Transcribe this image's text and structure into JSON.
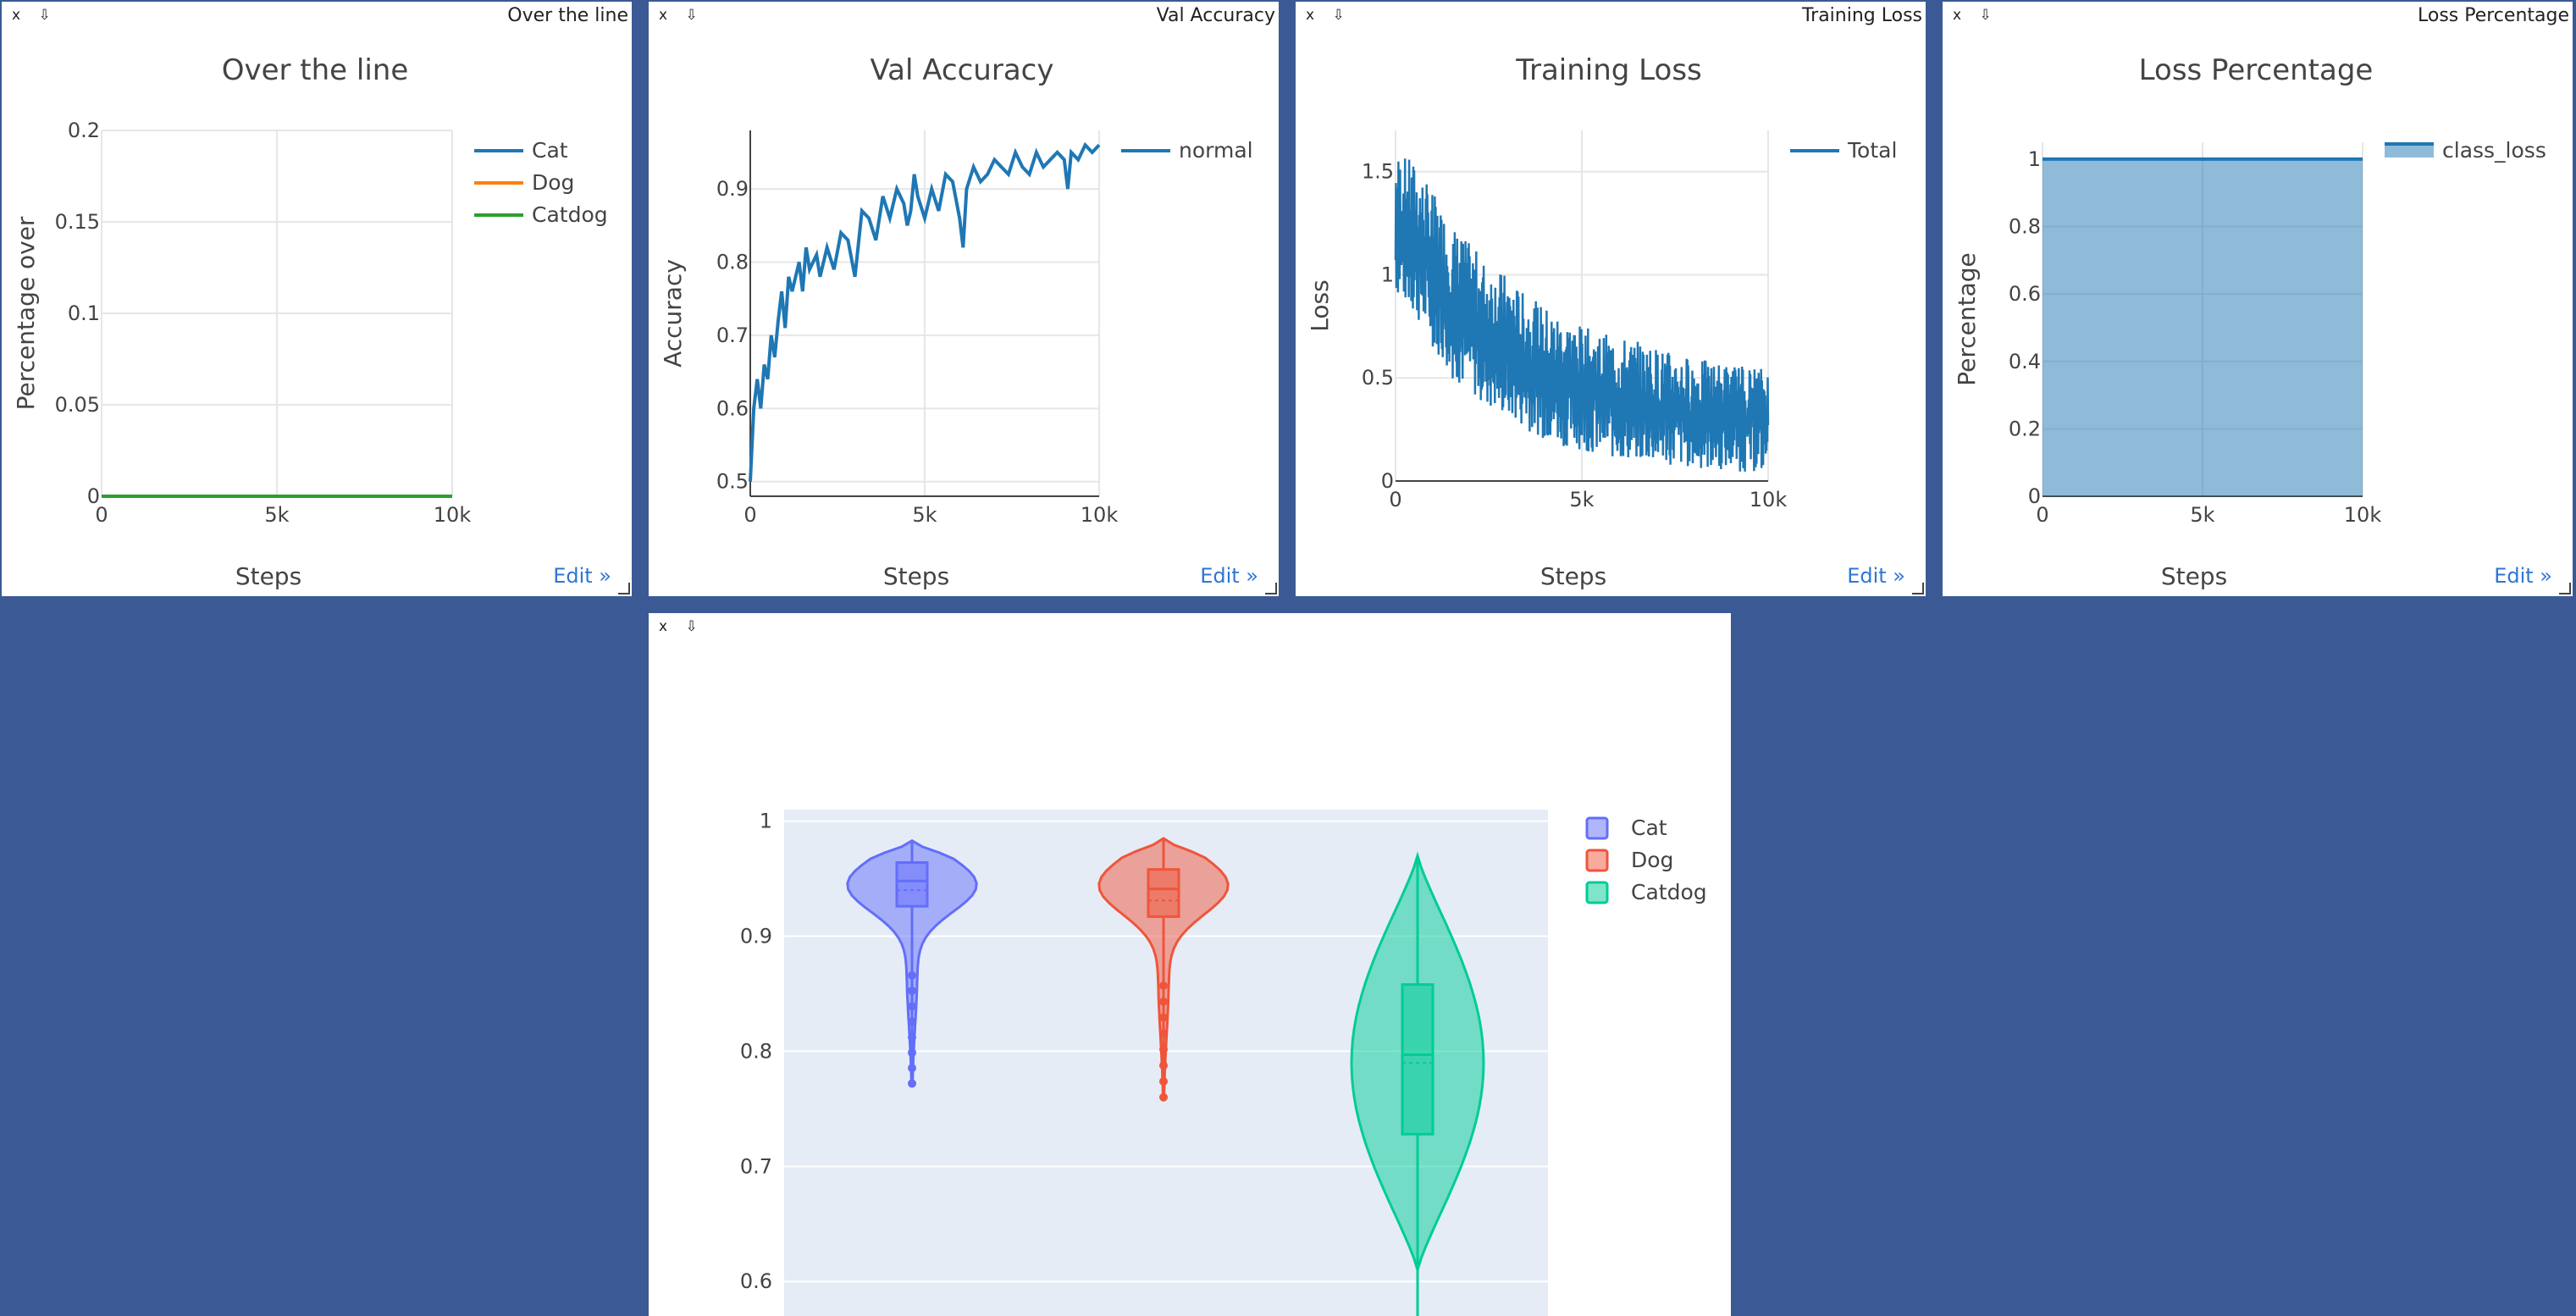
{
  "pane_controls": {
    "close": "x",
    "pin": "⇩"
  },
  "edit_label": "Edit »",
  "charts": [
    {
      "window_title": "Over the line",
      "chart_data": {
        "type": "line",
        "title": "Over the line",
        "xlabel": "Steps",
        "ylabel": "Percentage over",
        "xlim": [
          0,
          10000
        ],
        "ylim": [
          0,
          0.2
        ],
        "xticks": [
          "0",
          "5k",
          "10k"
        ],
        "yticks": [
          "0",
          "0.05",
          "0.1",
          "0.15",
          "0.2"
        ],
        "grid": true,
        "legend": "top-right",
        "series": [
          {
            "name": "Cat",
            "color": "#1f77b4",
            "x": [
              0,
              10000
            ],
            "y": [
              0,
              0
            ]
          },
          {
            "name": "Dog",
            "color": "#ff7f0e",
            "x": [
              0,
              10000
            ],
            "y": [
              0,
              0
            ]
          },
          {
            "name": "Catdog",
            "color": "#2ca02c",
            "x": [
              0,
              10000
            ],
            "y": [
              0,
              0
            ]
          }
        ]
      }
    },
    {
      "window_title": "Val Accuracy",
      "chart_data": {
        "type": "line",
        "title": "Val Accuracy",
        "xlabel": "Steps",
        "ylabel": "Accuracy",
        "xlim": [
          0,
          10000
        ],
        "ylim": [
          0.48,
          0.98
        ],
        "xticks": [
          "0",
          "5k",
          "10k"
        ],
        "yticks": [
          "0.5",
          "0.6",
          "0.7",
          "0.8",
          "0.9"
        ],
        "grid": true,
        "legend": "top-right",
        "series": [
          {
            "name": "normal",
            "color": "#1f77b4",
            "x": [
              0,
              100,
              200,
              300,
              400,
              500,
              600,
              700,
              800,
              900,
              1000,
              1100,
              1200,
              1300,
              1400,
              1500,
              1600,
              1700,
              1800,
              1900,
              2000,
              2200,
              2400,
              2600,
              2800,
              3000,
              3200,
              3400,
              3600,
              3800,
              4000,
              4200,
              4400,
              4500,
              4600,
              4700,
              4800,
              5000,
              5200,
              5400,
              5600,
              5800,
              6000,
              6100,
              6200,
              6400,
              6600,
              6800,
              7000,
              7200,
              7400,
              7600,
              7800,
              8000,
              8200,
              8400,
              8600,
              8800,
              9000,
              9100,
              9200,
              9400,
              9600,
              9800,
              10000
            ],
            "y": [
              0.5,
              0.6,
              0.64,
              0.6,
              0.66,
              0.64,
              0.7,
              0.67,
              0.72,
              0.76,
              0.71,
              0.78,
              0.76,
              0.78,
              0.8,
              0.76,
              0.82,
              0.79,
              0.8,
              0.81,
              0.78,
              0.82,
              0.79,
              0.84,
              0.83,
              0.78,
              0.87,
              0.86,
              0.83,
              0.89,
              0.86,
              0.9,
              0.88,
              0.85,
              0.87,
              0.92,
              0.89,
              0.86,
              0.9,
              0.87,
              0.92,
              0.91,
              0.86,
              0.82,
              0.9,
              0.93,
              0.91,
              0.92,
              0.94,
              0.93,
              0.92,
              0.95,
              0.93,
              0.92,
              0.95,
              0.93,
              0.94,
              0.95,
              0.94,
              0.9,
              0.95,
              0.94,
              0.96,
              0.95,
              0.96
            ]
          }
        ]
      }
    },
    {
      "window_title": "Training Loss",
      "chart_data": {
        "type": "line",
        "title": "Training Loss",
        "xlabel": "Steps",
        "ylabel": "Loss",
        "xlim": [
          0,
          10000
        ],
        "ylim": [
          0,
          1.7
        ],
        "xticks": [
          "0",
          "5k",
          "10k"
        ],
        "yticks": [
          "0",
          "0.5",
          "1",
          "1.5"
        ],
        "grid": true,
        "legend": "top-right",
        "series": [
          {
            "name": "Total",
            "color": "#1f77b4",
            "note_envelope": "dense noisy signal between lower and upper envelopes",
            "x": [
              0,
              500,
              1000,
              1500,
              2000,
              2500,
              3000,
              3500,
              4000,
              4500,
              5000,
              5500,
              6000,
              6500,
              7000,
              7500,
              8000,
              8500,
              9000,
              9500,
              10000
            ],
            "upper": [
              1.6,
              1.55,
              1.4,
              1.25,
              1.15,
              1.05,
              1.0,
              0.9,
              0.85,
              0.8,
              0.75,
              0.72,
              0.7,
              0.68,
              0.65,
              0.62,
              0.6,
              0.58,
              0.57,
              0.56,
              0.55
            ],
            "lower": [
              0.9,
              0.8,
              0.65,
              0.5,
              0.42,
              0.35,
              0.3,
              0.25,
              0.2,
              0.17,
              0.15,
              0.12,
              0.1,
              0.09,
              0.08,
              0.07,
              0.06,
              0.05,
              0.05,
              0.04,
              0.04
            ]
          }
        ]
      }
    },
    {
      "window_title": "Loss Percentage",
      "chart_data": {
        "type": "area",
        "title": "Loss Percentage",
        "xlabel": "Steps",
        "ylabel": "Percentage",
        "xlim": [
          0,
          10000
        ],
        "ylim": [
          0,
          1.05
        ],
        "xticks": [
          "0",
          "5k",
          "10k"
        ],
        "yticks": [
          "0",
          "0.2",
          "0.4",
          "0.6",
          "0.8",
          "1"
        ],
        "grid": true,
        "legend": "top-right",
        "series": [
          {
            "name": "class_loss",
            "color": "#1f77b4",
            "x": [
              0,
              10000
            ],
            "y": [
              1,
              1
            ]
          }
        ]
      }
    }
  ],
  "violin": {
    "chart_data": {
      "type": "violin",
      "ylim": [
        0.57,
        1.01
      ],
      "yticks": [
        "0.6",
        "0.7",
        "0.8",
        "0.9",
        "1"
      ],
      "legend": "top-right",
      "series": [
        {
          "name": "Cat",
          "color": "#636efa",
          "min": 0.772,
          "max": 0.983,
          "q1": 0.926,
          "median": 0.948,
          "q3": 0.964,
          "mean": 0.94
        },
        {
          "name": "Dog",
          "color": "#ef553b",
          "min": 0.76,
          "max": 0.985,
          "q1": 0.917,
          "median": 0.941,
          "q3": 0.958,
          "mean": 0.931
        },
        {
          "name": "Catdog",
          "color": "#00cc96",
          "min": 0.57,
          "max": 0.97,
          "q1": 0.728,
          "median": 0.797,
          "q3": 0.858,
          "mean": 0.79
        }
      ]
    }
  }
}
